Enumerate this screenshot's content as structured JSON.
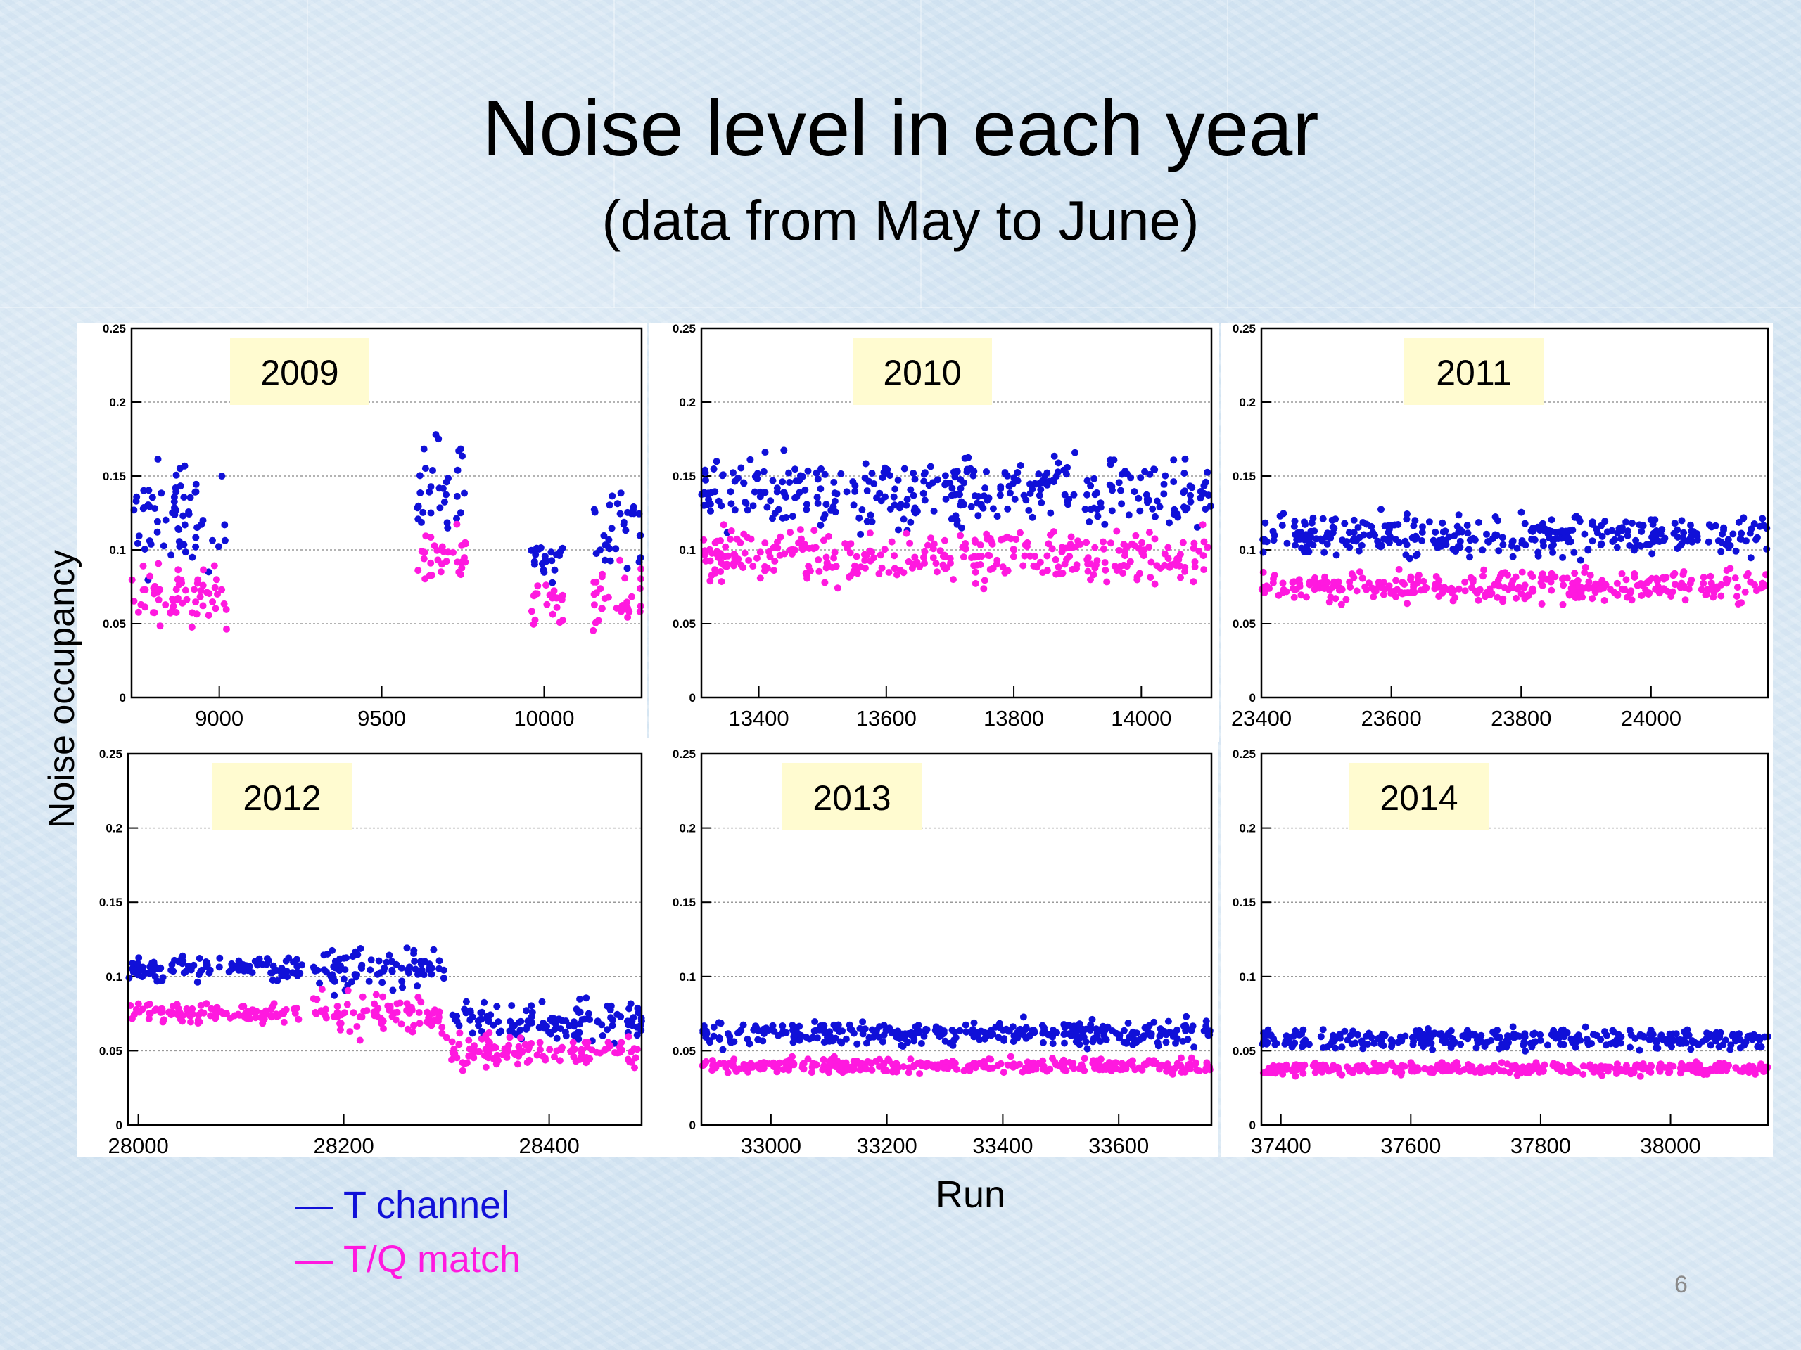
{
  "slide": {
    "title": "Noise level in each year",
    "subtitle": "(data from May to June)",
    "y_axis_label": "Noise occupancy",
    "x_axis_label": "Run",
    "page_number": "6"
  },
  "legend": [
    {
      "label": "— T channel",
      "color": "#1010d8"
    },
    {
      "label": "— T/Q match",
      "color": "#ff19df"
    }
  ],
  "chart_data": [
    {
      "type": "scatter",
      "label": "2009",
      "xlim": [
        8730,
        10300
      ],
      "ylim": [
        0,
        0.25
      ],
      "xticks": [
        9000,
        9500,
        10000
      ],
      "yticks": [
        0,
        0.05,
        0.1,
        0.15,
        0.2,
        0.25
      ],
      "grid": true,
      "series": [
        {
          "name": "T channel",
          "color": "#1010d8",
          "segments": [
            {
              "x": [
                8730,
                9030
              ],
              "base": 0.125,
              "spread": 0.05
            },
            {
              "x": [
                9610,
                9760
              ],
              "base": 0.145,
              "spread": 0.045
            },
            {
              "x": [
                9960,
                10060
              ],
              "base": 0.095,
              "spread": 0.02
            },
            {
              "x": [
                10150,
                10300
              ],
              "base": 0.115,
              "spread": 0.04
            }
          ]
        },
        {
          "name": "T/Q match",
          "color": "#ff19df",
          "segments": [
            {
              "x": [
                8730,
                9030
              ],
              "base": 0.07,
              "spread": 0.03
            },
            {
              "x": [
                9610,
                9760
              ],
              "base": 0.095,
              "spread": 0.03
            },
            {
              "x": [
                9960,
                10060
              ],
              "base": 0.065,
              "spread": 0.02
            },
            {
              "x": [
                10150,
                10300
              ],
              "base": 0.07,
              "spread": 0.03
            }
          ]
        }
      ]
    },
    {
      "type": "scatter",
      "label": "2010",
      "xlim": [
        13310,
        14110
      ],
      "ylim": [
        0,
        0.25
      ],
      "xticks": [
        13400,
        13600,
        13800,
        14000
      ],
      "yticks": [
        0,
        0.05,
        0.1,
        0.15,
        0.2,
        0.25
      ],
      "grid": true,
      "series": [
        {
          "name": "T channel",
          "color": "#1010d8",
          "segments": [
            {
              "x": [
                13310,
                14110
              ],
              "base": 0.14,
              "spread": 0.035
            }
          ]
        },
        {
          "name": "T/Q match",
          "color": "#ff19df",
          "segments": [
            {
              "x": [
                13310,
                14110
              ],
              "base": 0.095,
              "spread": 0.025
            }
          ]
        }
      ]
    },
    {
      "type": "scatter",
      "label": "2011",
      "xlim": [
        23400,
        24180
      ],
      "ylim": [
        0,
        0.25
      ],
      "xticks": [
        23400,
        23600,
        23800,
        24000
      ],
      "yticks": [
        0,
        0.05,
        0.1,
        0.15,
        0.2,
        0.25
      ],
      "grid": true,
      "series": [
        {
          "name": "T channel",
          "color": "#1010d8",
          "segments": [
            {
              "x": [
                23400,
                24180
              ],
              "base": 0.11,
              "spread": 0.02
            }
          ]
        },
        {
          "name": "T/Q match",
          "color": "#ff19df",
          "segments": [
            {
              "x": [
                23400,
                24180
              ],
              "base": 0.075,
              "spread": 0.015
            }
          ]
        }
      ]
    },
    {
      "type": "scatter",
      "label": "2012",
      "xlim": [
        27990,
        28490
      ],
      "ylim": [
        0,
        0.25
      ],
      "xticks": [
        28000,
        28200,
        28400
      ],
      "yticks": [
        0,
        0.05,
        0.1,
        0.15,
        0.2,
        0.25
      ],
      "grid": true,
      "series": [
        {
          "name": "T channel",
          "color": "#1010d8",
          "segments": [
            {
              "x": [
                27990,
                28160
              ],
              "base": 0.105,
              "spread": 0.012
            },
            {
              "x": [
                28170,
                28300
              ],
              "base": 0.105,
              "spread": 0.02
            },
            {
              "x": [
                28300,
                28490
              ],
              "base": 0.07,
              "spread": 0.02
            }
          ]
        },
        {
          "name": "T/Q match",
          "color": "#ff19df",
          "segments": [
            {
              "x": [
                27990,
                28160
              ],
              "base": 0.075,
              "spread": 0.01
            },
            {
              "x": [
                28170,
                28300
              ],
              "base": 0.075,
              "spread": 0.02
            },
            {
              "x": [
                28300,
                28490
              ],
              "base": 0.05,
              "spread": 0.015
            }
          ]
        }
      ]
    },
    {
      "type": "scatter",
      "label": "2013",
      "xlim": [
        32880,
        33760
      ],
      "ylim": [
        0,
        0.25
      ],
      "xticks": [
        33000,
        33200,
        33400,
        33600
      ],
      "yticks": [
        0,
        0.05,
        0.1,
        0.15,
        0.2,
        0.25
      ],
      "grid": true,
      "series": [
        {
          "name": "T channel",
          "color": "#1010d8",
          "segments": [
            {
              "x": [
                32880,
                33760
              ],
              "base": 0.062,
              "spread": 0.012
            }
          ]
        },
        {
          "name": "T/Q match",
          "color": "#ff19df",
          "segments": [
            {
              "x": [
                32880,
                33760
              ],
              "base": 0.04,
              "spread": 0.007
            }
          ]
        }
      ]
    },
    {
      "type": "scatter",
      "label": "2014",
      "xlim": [
        37370,
        38150
      ],
      "ylim": [
        0,
        0.25
      ],
      "xticks": [
        37400,
        37600,
        37800,
        38000
      ],
      "yticks": [
        0,
        0.05,
        0.1,
        0.15,
        0.2,
        0.25
      ],
      "grid": true,
      "series": [
        {
          "name": "T channel",
          "color": "#1010d8",
          "segments": [
            {
              "x": [
                37370,
                38150
              ],
              "base": 0.058,
              "spread": 0.01
            }
          ]
        },
        {
          "name": "T/Q match",
          "color": "#ff19df",
          "segments": [
            {
              "x": [
                37370,
                38150
              ],
              "base": 0.038,
              "spread": 0.006
            }
          ]
        }
      ]
    }
  ]
}
